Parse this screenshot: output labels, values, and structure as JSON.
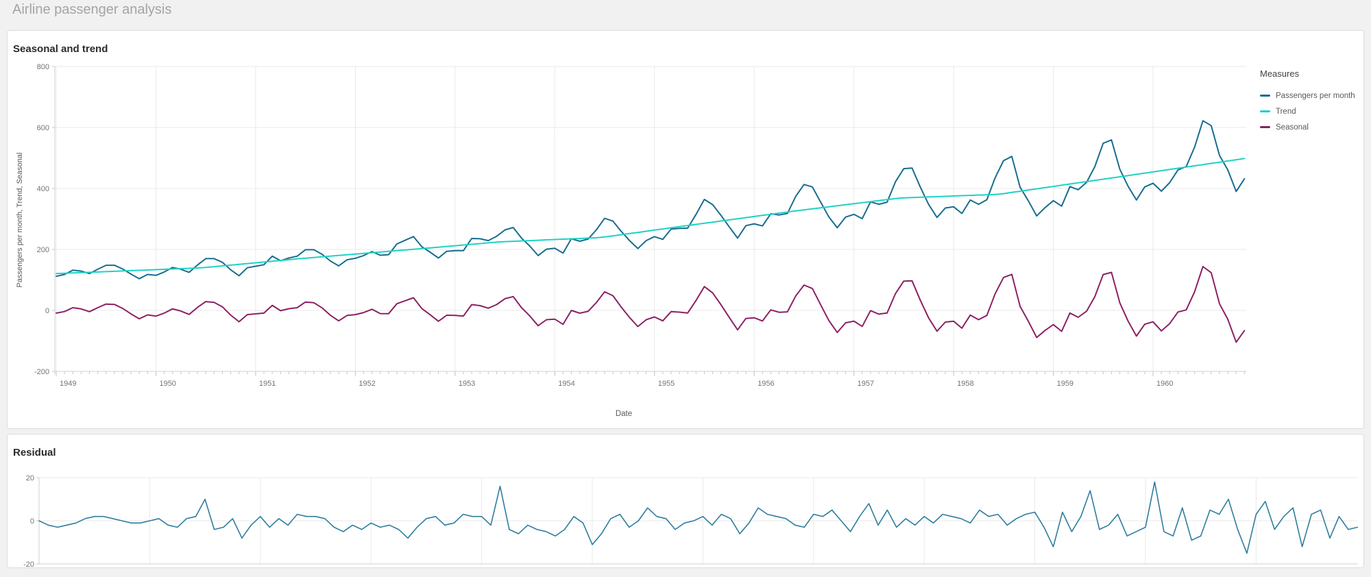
{
  "app": {
    "title": "Airline passenger analysis"
  },
  "colors": {
    "passengers": "#176d8e",
    "trend": "#1fd1c5",
    "seasonal": "#8c2062",
    "residual": "#2e7d9e",
    "grid": "#e9e9e9",
    "axis": "#cfcfcf",
    "tick": "#c6c6c6",
    "tick_label": "#737373",
    "axis_title": "#595959"
  },
  "chart_data": [
    {
      "type": "line",
      "title": "Seasonal and trend",
      "xlabel": "Date",
      "ylabel": "Passengers per month, Trend, Seasonal",
      "legend": {
        "title": "Measures",
        "position": "right"
      },
      "x_start": "1949-01",
      "x_freq": "monthly",
      "x_tick_labels": [
        "1949",
        "1950",
        "1951",
        "1952",
        "1953",
        "1954",
        "1955",
        "1956",
        "1957",
        "1958",
        "1959",
        "1960"
      ],
      "y_ticks": [
        800,
        600,
        400,
        200,
        0,
        -200
      ],
      "ylim": [
        -200,
        800
      ],
      "grid": true,
      "series": [
        {
          "name": "Passengers per month",
          "color": "#176d8e",
          "values": [
            112,
            118,
            132,
            129,
            121,
            135,
            148,
            148,
            136,
            119,
            104,
            118,
            115,
            126,
            141,
            135,
            125,
            149,
            170,
            170,
            158,
            133,
            114,
            140,
            145,
            150,
            178,
            163,
            172,
            178,
            199,
            199,
            184,
            162,
            146,
            166,
            171,
            180,
            193,
            181,
            183,
            218,
            230,
            242,
            209,
            191,
            172,
            194,
            196,
            196,
            236,
            235,
            229,
            243,
            264,
            272,
            237,
            211,
            180,
            201,
            204,
            188,
            235,
            227,
            234,
            264,
            302,
            293,
            259,
            229,
            203,
            229,
            242,
            233,
            267,
            269,
            270,
            315,
            364,
            347,
            312,
            274,
            237,
            278,
            284,
            277,
            317,
            313,
            318,
            374,
            413,
            405,
            355,
            306,
            271,
            306,
            315,
            301,
            356,
            348,
            355,
            422,
            465,
            467,
            404,
            347,
            305,
            336,
            340,
            318,
            362,
            348,
            363,
            435,
            491,
            505,
            404,
            359,
            310,
            337,
            360,
            342,
            406,
            396,
            420,
            472,
            548,
            559,
            463,
            407,
            362,
            405,
            417,
            391,
            419,
            461,
            472,
            535,
            622,
            606,
            508,
            461,
            390,
            432
          ]
        },
        {
          "name": "Trend",
          "color": "#1fd1c5",
          "values": [
            120.7,
            121.8,
            122.9,
            124.0,
            125.0,
            126.1,
            127.2,
            128.3,
            129.4,
            130.5,
            131.5,
            132.6,
            133.7,
            134.8,
            135.9,
            137.0,
            138.0,
            139.1,
            140.9,
            143.5,
            146.0,
            148.6,
            151.1,
            153.6,
            156.2,
            158.7,
            161.3,
            163.8,
            166.4,
            168.9,
            171.3,
            173.5,
            175.7,
            178.0,
            180.2,
            182.4,
            184.7,
            186.9,
            189.2,
            191.4,
            193.6,
            195.9,
            198.2,
            200.5,
            202.8,
            205.2,
            207.5,
            209.8,
            212.2,
            214.5,
            216.8,
            219.2,
            221.5,
            223.8,
            225.6,
            226.7,
            227.9,
            229.1,
            230.2,
            231.4,
            232.5,
            233.7,
            234.9,
            236.0,
            237.2,
            238.3,
            240.8,
            244.6,
            248.3,
            252.1,
            255.8,
            259.6,
            263.3,
            267.1,
            270.9,
            274.6,
            278.4,
            282.1,
            285.8,
            289.5,
            293.2,
            296.9,
            300.6,
            304.3,
            308.0,
            311.7,
            315.3,
            319.0,
            322.7,
            326.4,
            329.9,
            333.3,
            336.6,
            340.0,
            343.3,
            346.7,
            350.0,
            353.4,
            356.7,
            360.1,
            363.4,
            366.7,
            368.9,
            370.0,
            371.0,
            372.1,
            373.1,
            374.2,
            375.2,
            376.3,
            377.3,
            378.4,
            379.4,
            380.5,
            383.0,
            386.9,
            390.8,
            394.8,
            398.7,
            402.7,
            406.6,
            410.6,
            414.5,
            418.5,
            422.4,
            426.4,
            430.3,
            434.3,
            438.3,
            442.3,
            446.3,
            450.3,
            454.2,
            458.2,
            462.2,
            466.2,
            470.2,
            474.2,
            478.2,
            482.2,
            486.1,
            490.1,
            494.1,
            498.1
          ]
        },
        {
          "name": "Seasonal",
          "color": "#8c2062",
          "values": [
            -8.7,
            -3.8,
            9.1,
            5.0,
            -4.0,
            8.9,
            20.8,
            19.7,
            6.6,
            -11.5,
            -27.5,
            -14.6,
            -18.7,
            -8.8,
            5.1,
            -2.0,
            -13.0,
            9.9,
            29.1,
            26.5,
            12.0,
            -15.6,
            -37.1,
            -13.6,
            -11.2,
            -8.7,
            16.7,
            -0.8,
            5.6,
            9.1,
            27.7,
            25.5,
            8.3,
            -16.0,
            -34.2,
            -16.4,
            -13.7,
            -6.9,
            3.8,
            -10.4,
            -10.6,
            22.1,
            31.8,
            41.5,
            6.2,
            -14.2,
            -35.5,
            -15.8,
            -16.2,
            -18.5,
            19.2,
            15.8,
            7.5,
            19.2,
            38.4,
            45.3,
            9.1,
            -18.1,
            -50.2,
            -30.4,
            -28.5,
            -45.7,
            0.1,
            -9.0,
            -3.2,
            25.7,
            61.2,
            48.4,
            10.7,
            -23.1,
            -52.8,
            -30.6,
            -21.3,
            -34.1,
            -3.9,
            -5.6,
            -8.4,
            32.9,
            78.2,
            57.5,
            18.8,
            -22.9,
            -63.6,
            -26.3,
            -24.0,
            -34.7,
            1.7,
            -6.0,
            -4.7,
            47.6,
            83.1,
            71.7,
            18.4,
            -34.0,
            -72.3,
            -40.7,
            -35.0,
            -52.4,
            -0.7,
            -12.1,
            -8.4,
            55.3,
            96.1,
            97.0,
            33.0,
            -25.1,
            -68.1,
            -38.2,
            -35.2,
            -58.3,
            -15.3,
            -30.4,
            -16.4,
            54.5,
            108.0,
            118.1,
            13.2,
            -35.8,
            -88.7,
            -65.7,
            -46.6,
            -68.6,
            -8.5,
            -22.5,
            -2.4,
            45.6,
            117.7,
            124.7,
            24.7,
            -35.3,
            -84.3,
            -45.3,
            -37.2,
            -67.2,
            -43.2,
            -5.2,
            1.8,
            60.8,
            143.8,
            123.8,
            21.9,
            -29.1,
            -104.1,
            -66.1
          ]
        }
      ]
    },
    {
      "type": "line",
      "title": "Residual",
      "xlabel": "",
      "ylabel": "",
      "x_start": "1949-01",
      "x_freq": "monthly",
      "x_tick_labels": [],
      "y_ticks": [
        20,
        0,
        -20
      ],
      "ylim": [
        -20,
        20
      ],
      "grid": true,
      "series": [
        {
          "name": "Residual",
          "color": "#2e7d9e",
          "values": [
            0,
            -2,
            -3,
            -2,
            -1,
            1,
            2,
            2,
            1,
            0,
            -1,
            -1,
            0,
            1,
            -2,
            -3,
            1,
            2,
            10,
            -4,
            -3,
            1,
            -8,
            -2,
            2,
            -3,
            1,
            -2,
            3,
            2,
            2,
            1,
            -3,
            -5,
            -2,
            -4,
            -1,
            -3,
            -2,
            -4,
            -8,
            -3,
            1,
            2,
            -2,
            -1,
            3,
            2,
            2,
            -2,
            16,
            -4,
            -6,
            -2,
            -4,
            -5,
            -7,
            -4,
            2,
            -1,
            -11,
            -6,
            1,
            3,
            -3,
            0,
            6,
            2,
            1,
            -4,
            -1,
            0,
            2,
            -2,
            3,
            1,
            -6,
            -1,
            6,
            3,
            2,
            1,
            -2,
            -3,
            3,
            2,
            5,
            0,
            -5,
            2,
            8,
            -2,
            5,
            -3,
            1,
            -2,
            2,
            -1,
            3,
            2,
            1,
            -1,
            5,
            2,
            3,
            -2,
            1,
            3,
            4,
            -3,
            -12,
            4,
            -5,
            2,
            14,
            -4,
            -2,
            3,
            -7,
            -5,
            -3,
            18,
            -5,
            -7,
            6,
            -9,
            -7,
            5,
            3,
            10,
            -4,
            -15,
            3,
            9,
            -4,
            2,
            6,
            -12,
            3,
            5,
            -8,
            2,
            -4,
            -3
          ]
        }
      ]
    }
  ]
}
